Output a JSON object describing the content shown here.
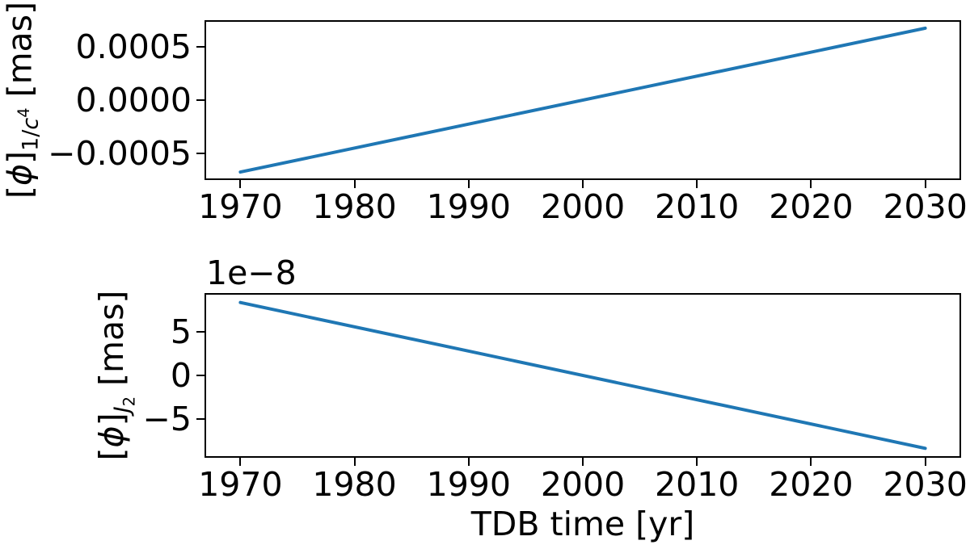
{
  "figure": {
    "background": "#ffffff",
    "axis_color": "#000000",
    "line_color": "#1f77b4"
  },
  "plots": {
    "top": {
      "ylabel": {
        "open": "[",
        "symbol": "ϕ",
        "close": "]",
        "sub_plain": "1/",
        "sub_italic": "c",
        "sub_sup": "4",
        "unit": " [mas]"
      }
    },
    "bottom": {
      "offset_label": "1e−8",
      "ylabel": {
        "open": "[",
        "symbol": "ϕ",
        "close": "]",
        "sub_italic": "J",
        "sub_sub": "2",
        "unit": " [mas]"
      },
      "xlabel": "TDB time [yr]"
    }
  },
  "chart_data": [
    {
      "id": "top",
      "type": "line",
      "title": "",
      "xlabel": "",
      "ylabel": "[ϕ]_{1/c⁴} [mas]",
      "series": [
        {
          "name": "phi_1_over_c4",
          "x": [
            1970,
            2030
          ],
          "y": [
            -0.00068,
            0.00068
          ]
        }
      ],
      "xlim": [
        1967,
        2033
      ],
      "ylim": [
        -0.00074,
        0.00074
      ],
      "xticks": {
        "values": [
          1970,
          1980,
          1990,
          2000,
          2010,
          2020,
          2030
        ],
        "labels": [
          "1970",
          "1980",
          "1990",
          "2000",
          "2010",
          "2020",
          "2030"
        ]
      },
      "yticks": {
        "values": [
          0.0005,
          0,
          -0.0005
        ],
        "labels": [
          "0.0005",
          "0.0000",
          "−0.0005"
        ]
      },
      "color": "#1f77b4",
      "grid": false,
      "legend": null
    },
    {
      "id": "bottom",
      "type": "line",
      "title": "",
      "xlabel": "TDB time [yr]",
      "ylabel": "[ϕ]_{J₂} [mas]",
      "y_offset_label": "1e−8",
      "series": [
        {
          "name": "phi_J2",
          "x": [
            1970,
            2030
          ],
          "y": [
            8.4e-08,
            -8.4e-08
          ]
        }
      ],
      "xlim": [
        1967,
        2033
      ],
      "ylim": [
        -9.3e-08,
        9.3e-08
      ],
      "xticks": {
        "values": [
          1970,
          1980,
          1990,
          2000,
          2010,
          2020,
          2030
        ],
        "labels": [
          "1970",
          "1980",
          "1990",
          "2000",
          "2010",
          "2020",
          "2030"
        ]
      },
      "yticks": {
        "values": [
          5e-08,
          0,
          -5e-08
        ],
        "labels": [
          "5",
          "0",
          "−5"
        ]
      },
      "color": "#1f77b4",
      "grid": false,
      "legend": null
    }
  ]
}
